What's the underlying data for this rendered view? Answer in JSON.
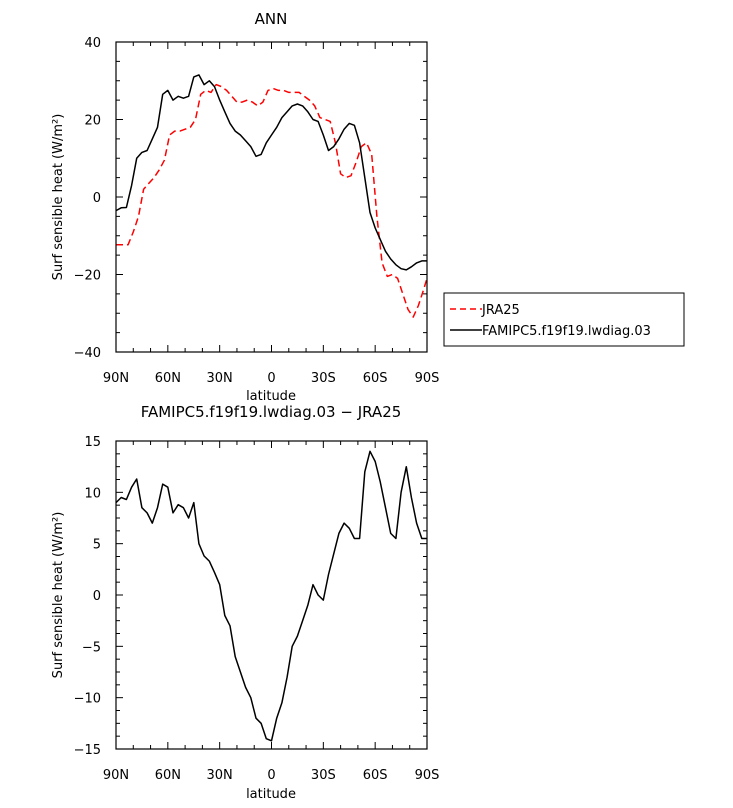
{
  "chart_data": [
    {
      "type": "line",
      "title": "ANN",
      "xlabel": "latitude",
      "ylabel": "Surf sensible heat (W/m²)",
      "xlim": [
        90,
        -90
      ],
      "ylim": [
        -40,
        40
      ],
      "xticks": [
        90,
        60,
        30,
        0,
        -30,
        -60,
        -90
      ],
      "xtick_labels": [
        "90N",
        "60N",
        "30N",
        "0",
        "30S",
        "60S",
        "90S"
      ],
      "yticks": [
        -40,
        -20,
        0,
        20,
        40
      ],
      "ytick_labels": [
        "−40",
        "−20",
        "0",
        "20",
        "40"
      ],
      "legend_position": "right",
      "series": [
        {
          "name": "JRA25",
          "color": "#ff0000",
          "dash": "dashed",
          "x": [
            90,
            86,
            83,
            80,
            77,
            74,
            71,
            68,
            65,
            62,
            59,
            56,
            53,
            50,
            47,
            44,
            41,
            38,
            35,
            32,
            29,
            26,
            23,
            20,
            17,
            14,
            11,
            8,
            5,
            2,
            -1,
            -4,
            -7,
            -10,
            -13,
            -16,
            -19,
            -22,
            -25,
            -28,
            -31,
            -34,
            -37,
            -40,
            -43,
            -46,
            -49,
            -52,
            -55,
            -58,
            -61,
            -64,
            -67,
            -70,
            -73,
            -76,
            -79,
            -82,
            -85,
            -88,
            -90
          ],
          "values": [
            -12.3,
            -12.3,
            -12.3,
            -9,
            -5,
            2,
            3.5,
            5,
            7,
            9.5,
            16,
            17,
            17,
            17.5,
            18,
            20,
            26.5,
            27.5,
            27,
            29,
            28.5,
            27.5,
            26,
            24.5,
            24.5,
            25,
            24.5,
            23.5,
            24.5,
            27.5,
            28,
            27.5,
            27.5,
            27,
            27,
            27,
            26,
            25,
            23.5,
            20.5,
            20,
            19.5,
            14,
            6,
            5,
            5.5,
            9,
            13,
            14,
            11,
            -5,
            -17,
            -20.5,
            -20,
            -21,
            -25,
            -29,
            -31,
            -28,
            -24,
            -21
          ]
        },
        {
          "name": "FAMIPC5.f19f19.lwdiag.03",
          "color": "#000000",
          "dash": "solid",
          "x": [
            90,
            87,
            84,
            81,
            78,
            75,
            72,
            69,
            66,
            63,
            60,
            57,
            54,
            51,
            48,
            45,
            42,
            39,
            36,
            33,
            30,
            27,
            24,
            21,
            18,
            15,
            12,
            9,
            6,
            3,
            0,
            -3,
            -6,
            -9,
            -12,
            -15,
            -18,
            -21,
            -24,
            -27,
            -30,
            -33,
            -36,
            -39,
            -42,
            -45,
            -48,
            -51,
            -54,
            -57,
            -60,
            -63,
            -66,
            -69,
            -72,
            -75,
            -78,
            -81,
            -84,
            -87,
            -90
          ],
          "values": [
            -3.5,
            -2.8,
            -2.7,
            3,
            10,
            11.5,
            12,
            15,
            18,
            26.5,
            27.5,
            25,
            26,
            25.5,
            26,
            31,
            31.5,
            29,
            30,
            28.5,
            25,
            22,
            19,
            17,
            16,
            14.5,
            13,
            10.5,
            11,
            14,
            16,
            18,
            20.5,
            22,
            23.5,
            24,
            23.5,
            22,
            20,
            19.5,
            16,
            12,
            13,
            15,
            17.5,
            19,
            18.5,
            14,
            5,
            -4,
            -8,
            -11,
            -14,
            -16,
            -17.5,
            -18.5,
            -18.8,
            -18,
            -17,
            -16.5,
            -16.5
          ]
        }
      ]
    },
    {
      "type": "line",
      "title": "FAMIPC5.f19f19.lwdiag.03 − JRA25",
      "xlabel": "latitude",
      "ylabel": "Surf sensible heat (W/m²)",
      "xlim": [
        90,
        -90
      ],
      "ylim": [
        -15,
        15
      ],
      "xticks": [
        90,
        60,
        30,
        0,
        -30,
        -60,
        -90
      ],
      "xtick_labels": [
        "90N",
        "60N",
        "30N",
        "0",
        "30S",
        "60S",
        "90S"
      ],
      "yticks": [
        -15,
        -10,
        -5,
        0,
        5,
        10,
        15
      ],
      "ytick_labels": [
        "−15",
        "−10",
        "−5",
        "0",
        "5",
        "10",
        "15"
      ],
      "series": [
        {
          "color": "#000000",
          "dash": "solid",
          "x": [
            90,
            87,
            84,
            81,
            78,
            75,
            72,
            69,
            66,
            63,
            60,
            57,
            54,
            51,
            48,
            45,
            42,
            39,
            36,
            33,
            30,
            27,
            24,
            21,
            18,
            15,
            12,
            9,
            6,
            3,
            0,
            -3,
            -6,
            -9,
            -12,
            -15,
            -18,
            -21,
            -24,
            -27,
            -30,
            -33,
            -36,
            -39,
            -42,
            -45,
            -48,
            -51,
            -54,
            -57,
            -60,
            -63,
            -66,
            -69,
            -72,
            -75,
            -78,
            -81,
            -84,
            -87,
            -90
          ],
          "values": [
            9,
            9.5,
            9.3,
            10.5,
            11.3,
            8.5,
            8,
            7,
            8.5,
            10.8,
            10.5,
            8,
            8.8,
            8.5,
            7.5,
            9,
            5,
            3.8,
            3.3,
            2.2,
            1,
            -2,
            -3,
            -6,
            -7.5,
            -9,
            -10,
            -12,
            -12.5,
            -14,
            -14.2,
            -12,
            -10.5,
            -8,
            -5,
            -4,
            -2.5,
            -1,
            1,
            0,
            -0.5,
            2,
            4,
            6,
            7,
            6.5,
            5.5,
            5.5,
            12,
            14,
            13,
            11,
            8.5,
            6,
            5.5,
            10,
            12.5,
            9.5,
            7,
            5.5,
            5.5
          ]
        }
      ]
    }
  ]
}
